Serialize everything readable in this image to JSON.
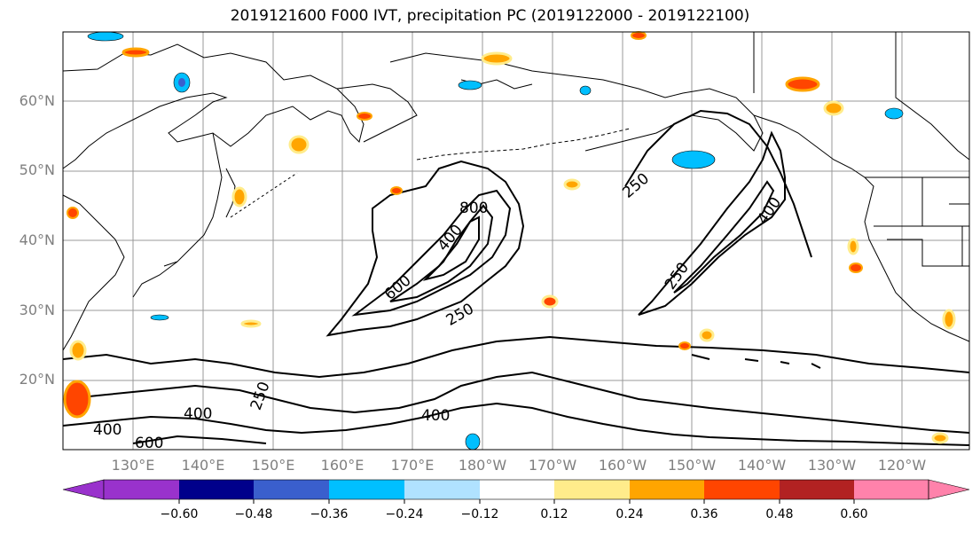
{
  "title": "2019121600 F000 IVT, precipitation PC (2019122000 - 2019122100)",
  "lat_labels": [
    "60°N",
    "50°N",
    "40°N",
    "30°N",
    "20°N"
  ],
  "lon_labels": [
    "130°E",
    "140°E",
    "150°E",
    "160°E",
    "170°E",
    "180°W",
    "170°W",
    "160°W",
    "150°W",
    "140°W",
    "130°W",
    "120°W"
  ],
  "ivt_contour_labels": [
    "800",
    "400",
    "600",
    "250",
    "250",
    "400",
    "250",
    "250",
    "400",
    "400",
    "600",
    "400"
  ],
  "colorbar": {
    "ticks": [
      "−0.60",
      "−0.48",
      "−0.36",
      "−0.24",
      "−0.12",
      "0.12",
      "0.24",
      "0.36",
      "0.48",
      "0.60"
    ],
    "colors": [
      "#9932CC",
      "#00008B",
      "#3A5FCD",
      "#00BFFF",
      "#B0E2FF",
      "#FFFFFF",
      "#FFEC8B",
      "#FFA500",
      "#FF4500",
      "#B22222",
      "#FF82AB"
    ]
  },
  "colors": {
    "land_lines": "#000000",
    "grid": "#999999",
    "label_gray": "#7f7f7f"
  }
}
